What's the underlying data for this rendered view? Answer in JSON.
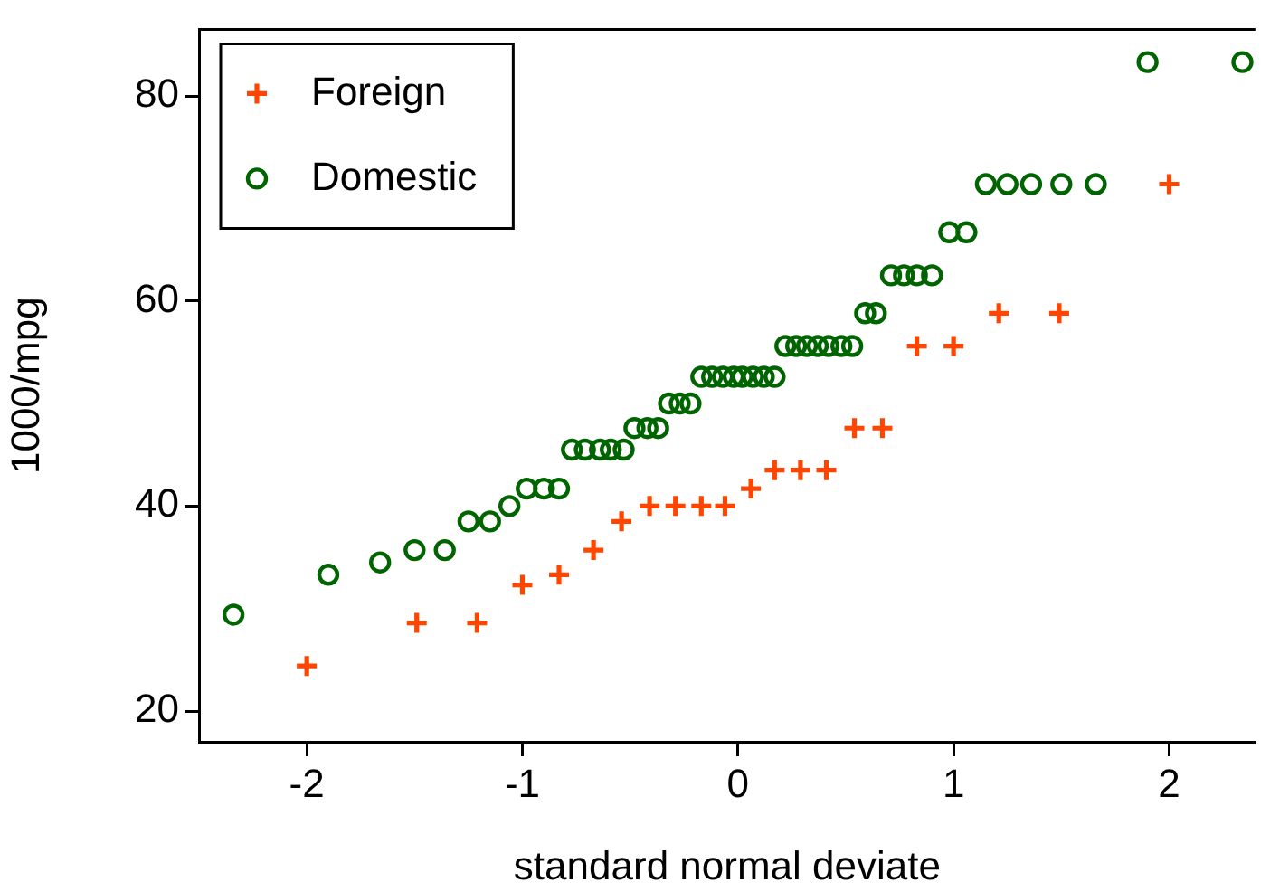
{
  "chart_data": {
    "type": "scatter",
    "xlabel": "standard normal deviate",
    "ylabel": "1000/mpg",
    "xlim": [
      -2.5,
      2.4
    ],
    "xticks": [
      -2,
      -1,
      0,
      1,
      2
    ],
    "ylim": [
      17,
      86.5
    ],
    "yticks": [
      20,
      40,
      60,
      80
    ],
    "grid": false,
    "legend": "top left",
    "series": [
      {
        "name": "Foreign",
        "color": "#ff4500",
        "marker": "cross",
        "x": [
          -2.0,
          -1.49,
          -1.21,
          -1.0,
          -0.83,
          -0.67,
          -0.54,
          -0.41,
          -0.29,
          -0.17,
          -0.06,
          0.06,
          0.17,
          0.29,
          0.41,
          0.54,
          0.67,
          0.83,
          1.0,
          1.21,
          1.49,
          2.0
        ],
        "values": [
          24.4,
          28.6,
          28.6,
          32.3,
          33.3,
          35.7,
          38.5,
          40,
          40,
          40,
          40,
          41.7,
          43.5,
          43.5,
          43.5,
          47.6,
          47.6,
          55.6,
          55.6,
          58.8,
          58.8,
          71.4
        ]
      },
      {
        "name": "Domestic",
        "color": "#006400",
        "marker": "circle",
        "x": [
          -2.34,
          -1.9,
          -1.66,
          -1.5,
          -1.36,
          -1.25,
          -1.15,
          -1.06,
          -0.98,
          -0.9,
          -0.83,
          -0.77,
          -0.71,
          -0.64,
          -0.59,
          -0.53,
          -0.48,
          -0.42,
          -0.37,
          -0.32,
          -0.27,
          -0.22,
          -0.17,
          -0.12,
          -0.07,
          -0.02,
          0.02,
          0.07,
          0.12,
          0.17,
          0.22,
          0.27,
          0.32,
          0.37,
          0.42,
          0.48,
          0.53,
          0.59,
          0.64,
          0.71,
          0.77,
          0.83,
          0.9,
          0.98,
          1.06,
          1.15,
          1.25,
          1.36,
          1.5,
          1.66,
          1.9,
          2.34
        ],
        "values": [
          29.4,
          33.3,
          34.5,
          35.7,
          35.7,
          38.5,
          38.5,
          40,
          41.7,
          41.7,
          41.7,
          45.5,
          45.5,
          45.5,
          45.5,
          45.5,
          47.6,
          47.6,
          47.6,
          50,
          50,
          50,
          52.6,
          52.6,
          52.6,
          52.6,
          52.6,
          52.6,
          52.6,
          52.6,
          55.6,
          55.6,
          55.6,
          55.6,
          55.6,
          55.6,
          55.6,
          58.8,
          58.8,
          62.5,
          62.5,
          62.5,
          62.5,
          66.7,
          66.7,
          71.4,
          71.4,
          71.4,
          71.4,
          71.4,
          83.3,
          83.3
        ]
      }
    ]
  }
}
